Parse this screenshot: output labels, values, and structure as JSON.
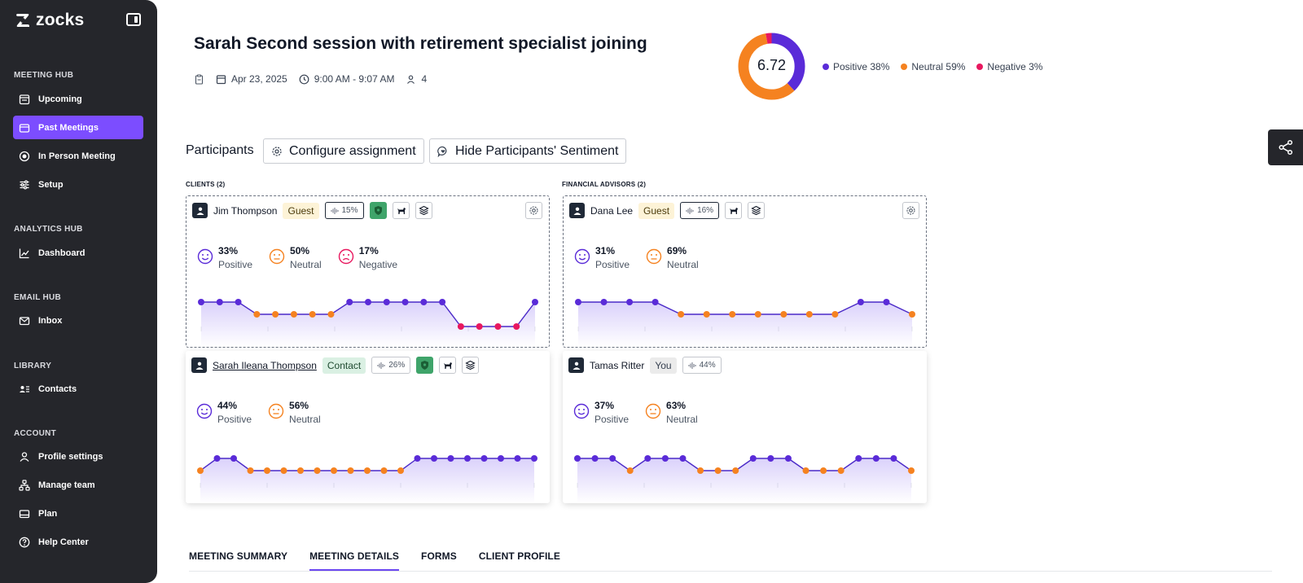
{
  "app": {
    "name": "zocks"
  },
  "sidebar": {
    "sections": [
      {
        "title": "MEETING HUB",
        "items": [
          {
            "label": "Upcoming",
            "icon": "calendar-list-icon"
          },
          {
            "label": "Past Meetings",
            "icon": "folder-icon",
            "active": true
          },
          {
            "label": "In Person Meeting",
            "icon": "record-icon"
          },
          {
            "label": "Setup",
            "icon": "sliders-icon"
          }
        ]
      },
      {
        "title": "ANALYTICS HUB",
        "items": [
          {
            "label": "Dashboard",
            "icon": "chart-line-icon"
          }
        ]
      },
      {
        "title": "EMAIL HUB",
        "items": [
          {
            "label": "Inbox",
            "icon": "mail-icon"
          }
        ]
      },
      {
        "title": "LIBRARY",
        "items": [
          {
            "label": "Contacts",
            "icon": "contacts-icon"
          }
        ]
      },
      {
        "title": "ACCOUNT",
        "items": [
          {
            "label": "Profile settings",
            "icon": "user-icon"
          },
          {
            "label": "Manage team",
            "icon": "team-icon"
          },
          {
            "label": "Plan",
            "icon": "card-icon"
          },
          {
            "label": "Help Center",
            "icon": "help-icon"
          }
        ]
      }
    ]
  },
  "meeting": {
    "title": "Sarah Second session with retirement specialist joining",
    "date": "Apr 23, 2025",
    "time": "9:00 AM - 9:07 AM",
    "attendees": "4"
  },
  "sentiment": {
    "score": "6.72",
    "positive_pct": 38,
    "neutral_pct": 59,
    "negative_pct": 3,
    "legend": [
      {
        "label": "Positive 38%",
        "color": "#5a2bd8"
      },
      {
        "label": "Neutral 59%",
        "color": "#f58220"
      },
      {
        "label": "Negative 3%",
        "color": "#e8185f"
      }
    ]
  },
  "participants_header": {
    "label": "Participants",
    "configure_label": "Configure assignment",
    "hide_label": "Hide Participants' Sentiment"
  },
  "groups": {
    "clients_label": "CLIENTS (2)",
    "advisors_label": "FINANCIAL ADVISORS (2)"
  },
  "colors": {
    "positive": "#5a2bd8",
    "neutral": "#f58220",
    "negative": "#e8185f",
    "accent": "#7c4dff"
  },
  "participants": [
    {
      "name": "Jim Thompson",
      "role": "Guest",
      "talk": "15%",
      "stats": [
        {
          "value": "33%",
          "label": "Positive"
        },
        {
          "value": "50%",
          "label": "Neutral"
        },
        {
          "value": "17%",
          "label": "Negative"
        }
      ],
      "timeline": [
        1,
        1,
        1,
        0,
        0,
        0,
        0,
        0,
        1,
        1,
        1,
        1,
        1,
        1,
        -1,
        -1,
        -1,
        -1,
        1
      ]
    },
    {
      "name": "Dana Lee",
      "role": "Guest",
      "talk": "16%",
      "stats": [
        {
          "value": "31%",
          "label": "Positive"
        },
        {
          "value": "69%",
          "label": "Neutral"
        }
      ],
      "timeline": [
        1,
        1,
        1,
        1,
        0,
        0,
        0,
        0,
        0,
        0,
        0,
        1,
        1,
        0
      ]
    },
    {
      "name": "Sarah Ileana Thompson",
      "role": "Contact",
      "talk": "26%",
      "stats": [
        {
          "value": "44%",
          "label": "Positive"
        },
        {
          "value": "56%",
          "label": "Neutral"
        }
      ],
      "timeline": [
        0,
        1,
        1,
        0,
        0,
        0,
        0,
        0,
        0,
        0,
        0,
        0,
        0,
        1,
        1,
        1,
        1,
        1,
        1,
        1,
        1
      ]
    },
    {
      "name": "Tamas Ritter",
      "role": "You",
      "talk": "44%",
      "stats": [
        {
          "value": "37%",
          "label": "Positive"
        },
        {
          "value": "63%",
          "label": "Neutral"
        }
      ],
      "timeline": [
        1,
        1,
        1,
        0,
        1,
        1,
        1,
        0,
        0,
        0,
        1,
        1,
        1,
        0,
        0,
        0,
        1,
        1,
        1,
        0
      ]
    }
  ],
  "tabs": [
    {
      "label": "MEETING SUMMARY"
    },
    {
      "label": "MEETING DETAILS",
      "active": true
    },
    {
      "label": "FORMS"
    },
    {
      "label": "CLIENT PROFILE"
    }
  ]
}
